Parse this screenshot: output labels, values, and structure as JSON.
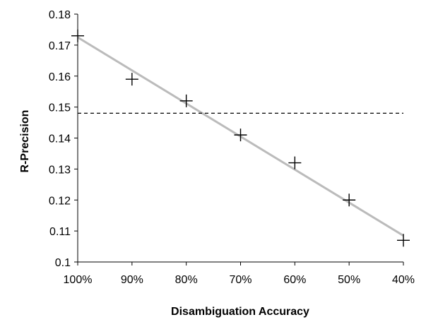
{
  "chart_data": {
    "type": "scatter",
    "title": "",
    "xlabel": "Disambiguation Accuracy",
    "ylabel": "R-Precision",
    "categories": [
      "100%",
      "90%",
      "80%",
      "70%",
      "60%",
      "50%",
      "40%"
    ],
    "x": [
      100,
      90,
      80,
      70,
      60,
      50,
      40
    ],
    "xlim": [
      100,
      40
    ],
    "ylim": [
      0.1,
      0.18
    ],
    "yticks": [
      "0.1",
      "0.11",
      "0.12",
      "0.13",
      "0.14",
      "0.15",
      "0.16",
      "0.17",
      "0.18"
    ],
    "grid": false,
    "legend": "none",
    "series": [
      {
        "marker": "plus",
        "color": "#000000",
        "values": [
          0.173,
          0.159,
          0.152,
          0.141,
          0.132,
          0.12,
          0.107
        ]
      }
    ],
    "trendline": {
      "color": "#bbbbbb",
      "start": [
        100,
        0.1725
      ],
      "end": [
        40,
        0.1085
      ]
    },
    "reference_line": {
      "y": 0.148,
      "style": "dashed",
      "color": "#000000"
    }
  }
}
